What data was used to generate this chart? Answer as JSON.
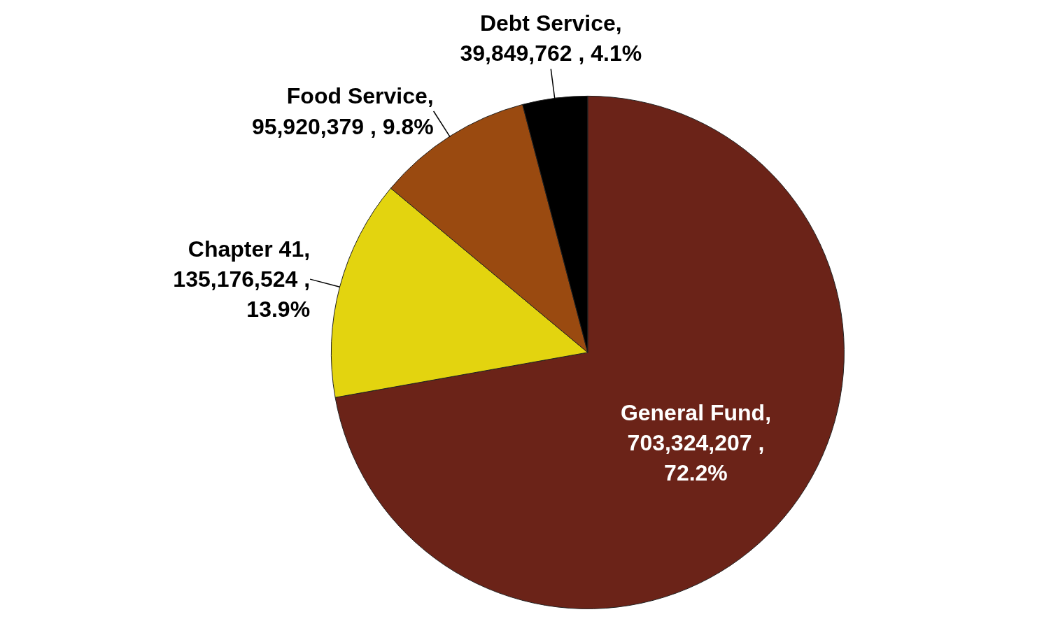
{
  "chart_data": {
    "type": "pie",
    "categories": [
      "General Fund",
      "Chapter 41",
      "Food Service",
      "Debt Service"
    ],
    "values": [
      703324207,
      135176524,
      95920379,
      39849762
    ],
    "colors": [
      "#6b2318",
      "#e3d40f",
      "#9a4a10",
      "#000000"
    ],
    "value_labels": [
      ", 703,324,207 , 72.2%",
      ", 135,176,524 , 13.9%",
      ", 95,920,379 , 9.8%",
      ", 39,849,762 , 4.1%"
    ]
  }
}
